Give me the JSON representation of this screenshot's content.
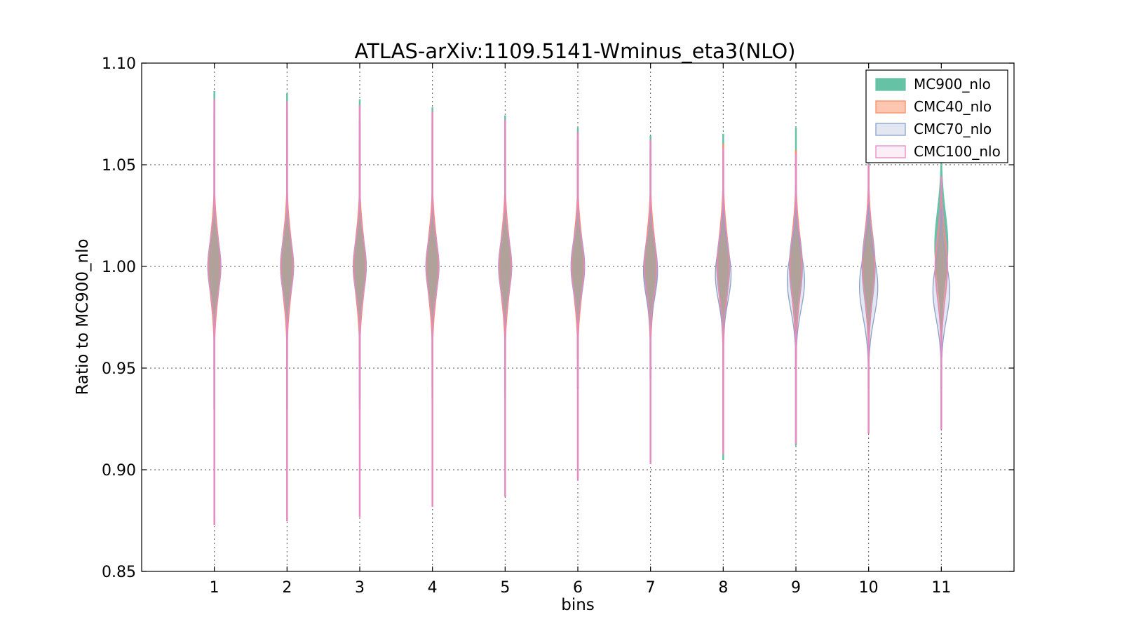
{
  "chart_data": {
    "type": "violin",
    "title": "ATLAS-arXiv:1109.5141-Wminus_eta3(NLO)",
    "xlabel": "bins",
    "ylabel": "Ratio to MC900_nlo",
    "categories": [
      "1",
      "2",
      "3",
      "4",
      "5",
      "6",
      "7",
      "8",
      "9",
      "10",
      "11"
    ],
    "x": [
      1,
      2,
      3,
      4,
      5,
      6,
      7,
      8,
      9,
      10,
      11
    ],
    "ylim": [
      0.85,
      1.1
    ],
    "yticks": [
      "0.85",
      "0.90",
      "0.95",
      "1.00",
      "1.05",
      "1.10"
    ],
    "grid": true,
    "legend_position": "top-right",
    "series": [
      {
        "name": "MC900_nlo",
        "fill": "#66c2a5",
        "fill_opacity": 1.0,
        "stroke": "#66c2a5",
        "center": [
          1.0,
          1.0,
          1.0,
          1.0,
          1.0,
          1.0,
          1.0,
          1.0,
          1.0,
          1.0,
          1.0
        ],
        "core_half_width": [
          0.012,
          0.012,
          0.012,
          0.012,
          0.012,
          0.012,
          0.013,
          0.014,
          0.015,
          0.016,
          0.017
        ],
        "max": [
          1.086,
          1.085,
          1.082,
          1.078,
          1.074,
          1.068,
          1.064,
          1.065,
          1.068,
          1.058,
          1.058
        ],
        "min": [
          0.93,
          0.93,
          0.935,
          0.94,
          0.94,
          0.94,
          0.945,
          0.905,
          0.912,
          0.94,
          0.94
        ],
        "max_width": [
          0.25,
          0.25,
          0.25,
          0.25,
          0.25,
          0.25,
          0.25,
          0.25,
          0.25,
          0.25,
          0.25
        ],
        "skew": [
          0,
          0,
          0,
          0,
          0,
          0,
          0,
          0,
          0,
          0,
          0.01
        ]
      },
      {
        "name": "CMC40_nlo",
        "fill": "#fc8d62",
        "fill_opacity": 0.5,
        "stroke": "#fc8d62",
        "center": [
          1.0,
          1.0,
          1.0,
          1.0,
          1.0,
          1.0,
          1.0,
          1.0,
          1.0,
          1.0,
          1.0
        ],
        "core_half_width": [
          0.016,
          0.016,
          0.016,
          0.016,
          0.016,
          0.016,
          0.016,
          0.017,
          0.017,
          0.017,
          0.016
        ],
        "max": [
          1.062,
          1.062,
          1.062,
          1.062,
          1.062,
          1.062,
          1.061,
          1.06,
          1.057,
          1.05,
          1.044
        ],
        "min": [
          0.95,
          0.955,
          0.955,
          0.955,
          0.955,
          0.955,
          0.955,
          0.955,
          0.955,
          0.955,
          0.958
        ],
        "max_width": [
          0.22,
          0.22,
          0.22,
          0.22,
          0.22,
          0.22,
          0.22,
          0.22,
          0.22,
          0.22,
          0.22
        ],
        "skew": [
          0,
          0,
          0,
          0,
          0,
          0,
          0,
          0,
          0,
          0,
          0
        ]
      },
      {
        "name": "CMC70_nlo",
        "fill": "#8da0cb",
        "fill_opacity": 0.25,
        "stroke": "#8da0cb",
        "center": [
          1.0,
          1.0,
          1.0,
          1.0,
          1.0,
          1.0,
          0.998,
          0.996,
          0.993,
          0.99,
          0.988
        ],
        "core_half_width": [
          0.013,
          0.013,
          0.013,
          0.013,
          0.013,
          0.013,
          0.013,
          0.013,
          0.014,
          0.015,
          0.014
        ],
        "max": [
          1.075,
          1.075,
          1.072,
          1.07,
          1.068,
          1.062,
          1.058,
          1.05,
          1.04,
          1.03,
          1.028
        ],
        "min": [
          0.93,
          0.93,
          0.93,
          0.935,
          0.935,
          0.94,
          0.945,
          0.945,
          0.95,
          0.95,
          0.955
        ],
        "max_width": [
          0.25,
          0.25,
          0.25,
          0.25,
          0.25,
          0.26,
          0.27,
          0.3,
          0.33,
          0.35,
          0.32
        ],
        "skew": [
          0,
          0,
          0,
          0,
          0,
          0,
          0,
          0,
          0,
          0,
          0
        ]
      },
      {
        "name": "CMC100_nlo",
        "fill": "#e78ac3",
        "fill_opacity": 0.15,
        "stroke": "#e78ac3",
        "center": [
          1.0,
          1.0,
          1.0,
          1.0,
          1.0,
          1.0,
          1.0,
          1.0,
          1.0,
          1.0,
          1.0
        ],
        "core_half_width": [
          0.013,
          0.013,
          0.013,
          0.013,
          0.013,
          0.013,
          0.013,
          0.014,
          0.014,
          0.015,
          0.016
        ],
        "max": [
          1.082,
          1.081,
          1.079,
          1.076,
          1.072,
          1.066,
          1.062,
          1.058,
          1.055,
          1.05,
          1.044
        ],
        "min": [
          0.873,
          0.875,
          0.877,
          0.882,
          0.887,
          0.895,
          0.903,
          0.908,
          0.913,
          0.918,
          0.92
        ],
        "max_width": [
          0.24,
          0.24,
          0.24,
          0.24,
          0.24,
          0.24,
          0.24,
          0.24,
          0.24,
          0.24,
          0.24
        ],
        "skew": [
          0,
          0,
          0,
          0,
          0,
          0,
          0,
          0,
          0,
          0,
          0
        ]
      }
    ]
  }
}
